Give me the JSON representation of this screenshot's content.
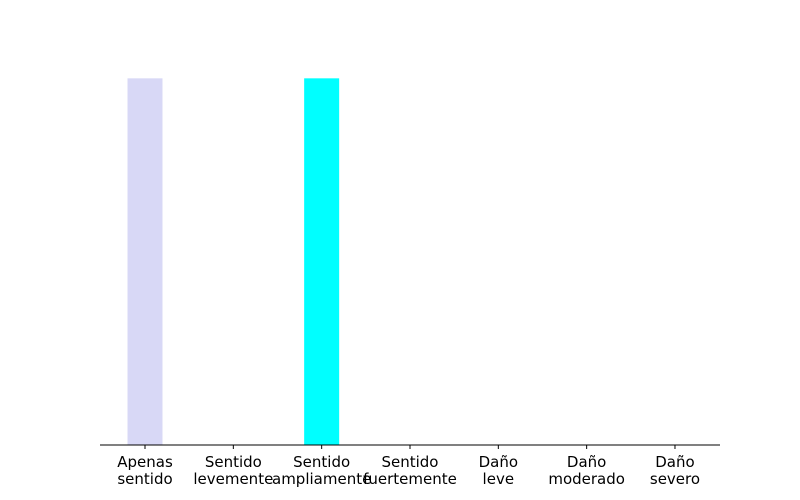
{
  "chart_data": {
    "type": "bar",
    "categories": [
      [
        "Apenas",
        "sentido"
      ],
      [
        "Sentido",
        "levemente"
      ],
      [
        "Sentido",
        "ampliamente"
      ],
      [
        "Sentido",
        "fuertemente"
      ],
      [
        "Daño",
        "leve"
      ],
      [
        "Daño",
        "moderado"
      ],
      [
        "Daño",
        "severo"
      ]
    ],
    "values": [
      1,
      0,
      1,
      0,
      0,
      0,
      0
    ],
    "colors": [
      "#d8d8f6",
      "#d8d8f6",
      "#00ffff",
      "#00ffff",
      "#00ffff",
      "#00ffff",
      "#00ffff"
    ],
    "ylim": [
      0,
      1.05
    ],
    "grid": false,
    "title": "",
    "xlabel": "",
    "ylabel": ""
  }
}
